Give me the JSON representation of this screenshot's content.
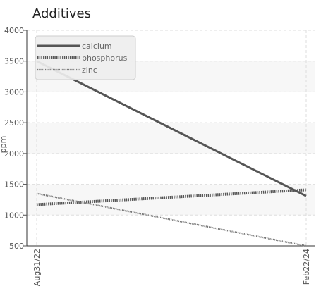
{
  "chart_data": {
    "type": "line",
    "title": "Additives",
    "xlabel": "",
    "ylabel": "ppm",
    "categories": [
      "Aug31/22",
      "Feb22/24"
    ],
    "series": [
      {
        "name": "calcium",
        "values": [
          3500,
          1310
        ],
        "color": "#555555",
        "dash": "solid"
      },
      {
        "name": "phosphorus",
        "values": [
          1170,
          1410
        ],
        "color": "#555555",
        "dash": "dotted"
      },
      {
        "name": "zinc",
        "values": [
          1350,
          500
        ],
        "color": "#777777",
        "dash": "dotted-thin"
      }
    ],
    "ylim": [
      500,
      4000
    ],
    "yticks": [
      500,
      1000,
      1500,
      2000,
      2500,
      3000,
      3500,
      4000
    ],
    "grid": true,
    "legend_position": "top-left"
  }
}
